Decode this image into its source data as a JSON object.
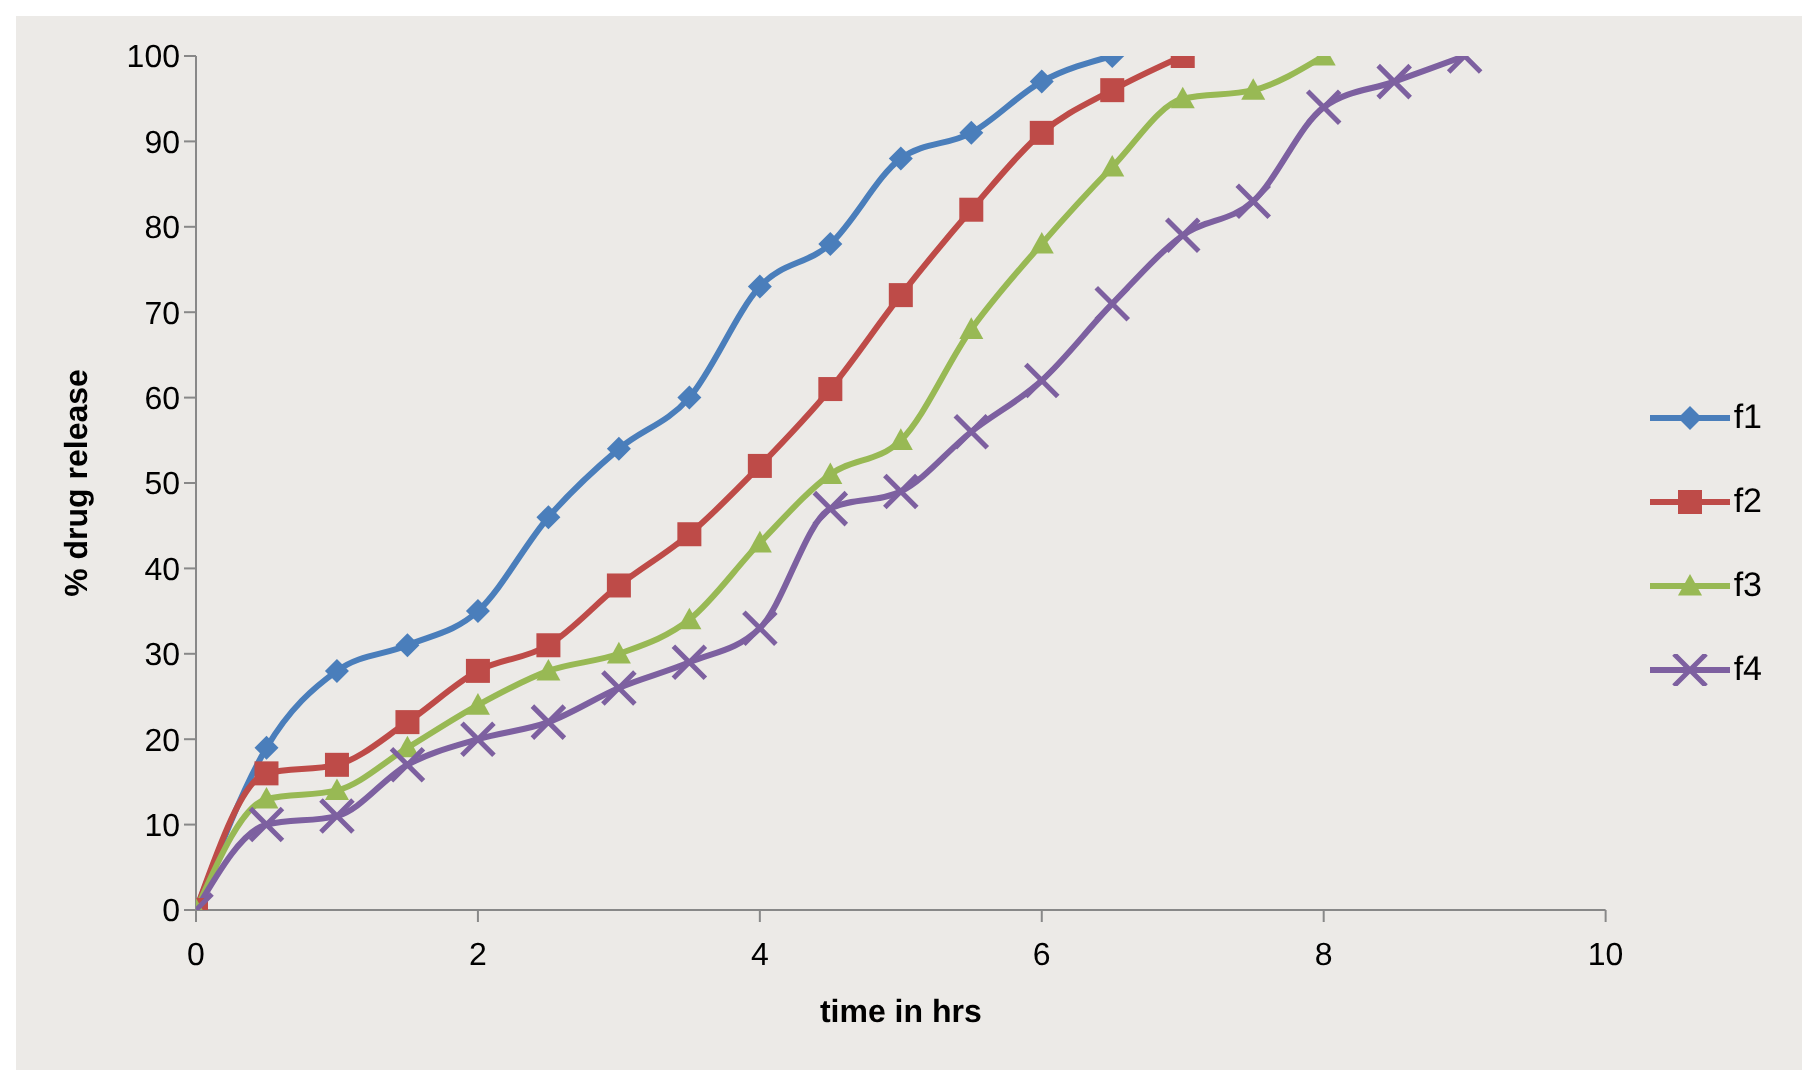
{
  "chart_data": {
    "type": "line",
    "xlabel": "time in hrs",
    "ylabel": "% drug release",
    "xlim": [
      0,
      10
    ],
    "xticks": [
      0,
      2,
      4,
      6,
      8,
      10
    ],
    "ylim": [
      0,
      100
    ],
    "yticks": [
      0,
      10,
      20,
      30,
      40,
      50,
      60,
      70,
      80,
      90,
      100
    ],
    "grid": false,
    "legend": "right",
    "series": [
      {
        "name": "f1",
        "color": "#4a7ebb",
        "marker": "diamond",
        "x": [
          0,
          0.5,
          1,
          1.5,
          2,
          2.5,
          3,
          3.5,
          4,
          4.5,
          5,
          5.5,
          6,
          6.5
        ],
        "values": [
          0,
          19,
          28,
          31,
          35,
          46,
          54,
          60,
          73,
          78,
          88,
          91,
          97,
          100
        ]
      },
      {
        "name": "f2",
        "color": "#be4b48",
        "marker": "square",
        "x": [
          0,
          0.5,
          1,
          1.5,
          2,
          2.5,
          3,
          3.5,
          4,
          4.5,
          5,
          5.5,
          6,
          6.5,
          7
        ],
        "values": [
          0,
          16,
          17,
          22,
          28,
          31,
          38,
          44,
          52,
          61,
          72,
          82,
          91,
          96,
          100
        ]
      },
      {
        "name": "f3",
        "color": "#98b954",
        "marker": "triangle",
        "x": [
          0,
          0.5,
          1,
          1.5,
          2,
          2.5,
          3,
          3.5,
          4,
          4.5,
          5,
          5.5,
          6,
          6.5,
          7,
          7.5,
          8
        ],
        "values": [
          0,
          13,
          14,
          19,
          24,
          28,
          30,
          34,
          43,
          51,
          55,
          68,
          78,
          87,
          95,
          96,
          100
        ]
      },
      {
        "name": "f4",
        "color": "#7d60a0",
        "marker": "cross",
        "x": [
          0,
          0.5,
          1,
          1.5,
          2,
          2.5,
          3,
          3.5,
          4,
          4.5,
          5,
          5.5,
          6,
          6.5,
          7,
          7.5,
          8,
          8.5,
          9
        ],
        "values": [
          0,
          10,
          11,
          17,
          20,
          22,
          26,
          29,
          33,
          47,
          49,
          56,
          62,
          71,
          79,
          83,
          94,
          97,
          100
        ]
      }
    ]
  }
}
